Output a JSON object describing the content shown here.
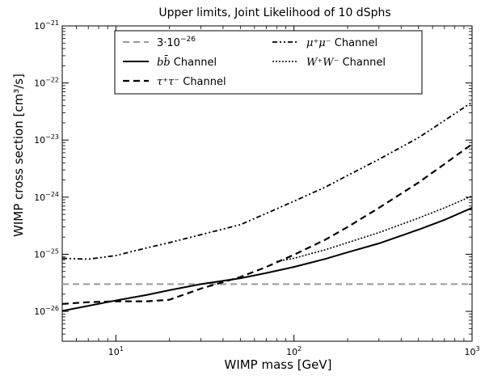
{
  "chart_data": {
    "type": "line",
    "title": "Upper limits, Joint Likelihood of 10 dSphs",
    "xlabel": "WIMP mass [GeV]",
    "ylabel": "WIMP cross section [cm³/s]",
    "x_scale": "log",
    "y_scale": "log",
    "xlim": [
      5,
      1000
    ],
    "ylim": [
      3e-27,
      1e-21
    ],
    "x_ticks": [
      {
        "value": 10,
        "base": "10",
        "exp": "1"
      },
      {
        "value": 100,
        "base": "10",
        "exp": "2"
      },
      {
        "value": 1000,
        "base": "10",
        "exp": "3"
      }
    ],
    "y_ticks": [
      {
        "value": 1e-26,
        "base": "10",
        "exp": "−26"
      },
      {
        "value": 1e-25,
        "base": "10",
        "exp": "−25"
      },
      {
        "value": 1e-24,
        "base": "10",
        "exp": "−24"
      },
      {
        "value": 1e-23,
        "base": "10",
        "exp": "−23"
      },
      {
        "value": 1e-22,
        "base": "10",
        "exp": "−22"
      },
      {
        "value": 1e-21,
        "base": "10",
        "exp": "−21"
      }
    ],
    "legend_position": "top-center",
    "series": [
      {
        "id": "thermal",
        "legend_prefix": "3·10",
        "legend_exp": "−26",
        "legend_suffix": "",
        "style": "dashed-gray",
        "color": "#999999",
        "x": [
          5,
          1000
        ],
        "y": [
          3e-26,
          3e-26
        ]
      },
      {
        "id": "bb",
        "legend_prefix": "b",
        "legend_exp": "",
        "legend_suffix": " Channel",
        "legend_math": "bb̄",
        "style": "solid",
        "color": "#000000",
        "x": [
          5,
          7,
          10,
          15,
          20,
          30,
          50,
          70,
          100,
          150,
          200,
          300,
          500,
          700,
          1000
        ],
        "y": [
          1.02e-26,
          1.25e-26,
          1.55e-26,
          1.95e-26,
          2.35e-26,
          3e-26,
          3.8e-26,
          4.7e-26,
          6e-26,
          8.3e-26,
          1.08e-25,
          1.55e-25,
          2.7e-25,
          4e-25,
          6.5e-25
        ]
      },
      {
        "id": "tautau",
        "legend_math": "τ⁺τ⁻",
        "legend_suffix": "  Channel",
        "style": "dashed",
        "color": "#000000",
        "x": [
          5,
          7,
          10,
          15,
          20,
          30,
          50,
          70,
          100,
          150,
          200,
          300,
          500,
          700,
          1000
        ],
        "y": [
          1.35e-26,
          1.45e-26,
          1.5e-26,
          1.5e-26,
          1.6e-26,
          2.5e-26,
          4e-26,
          6e-26,
          9.8e-26,
          1.8e-25,
          3e-25,
          6.5e-25,
          1.8e-24,
          3.8e-24,
          8.5e-24
        ]
      },
      {
        "id": "mumu",
        "legend_math": "μ⁺μ⁻",
        "legend_suffix": "  Channel",
        "style": "dash-dot",
        "color": "#000000",
        "x": [
          5,
          7,
          10,
          15,
          20,
          30,
          50,
          70,
          100,
          150,
          200,
          300,
          500,
          700,
          1000
        ],
        "y": [
          8.5e-26,
          8.2e-26,
          9.5e-26,
          1.3e-25,
          1.6e-25,
          2.2e-25,
          3.3e-25,
          5.2e-25,
          8.5e-25,
          1.5e-24,
          2.4e-24,
          4.6e-24,
          1.1e-23,
          2.2e-23,
          4.6e-23
        ]
      },
      {
        "id": "ww",
        "legend_math": "W⁺W⁻",
        "legend_suffix": "  Channel",
        "style": "dotted",
        "color": "#000000",
        "x": [
          80,
          100,
          150,
          200,
          300,
          500,
          700,
          1000
        ],
        "y": [
          7.5e-26,
          8.5e-26,
          1.2e-25,
          1.6e-25,
          2.4e-25,
          4.3e-25,
          6.5e-25,
          1.05e-24
        ]
      }
    ]
  }
}
